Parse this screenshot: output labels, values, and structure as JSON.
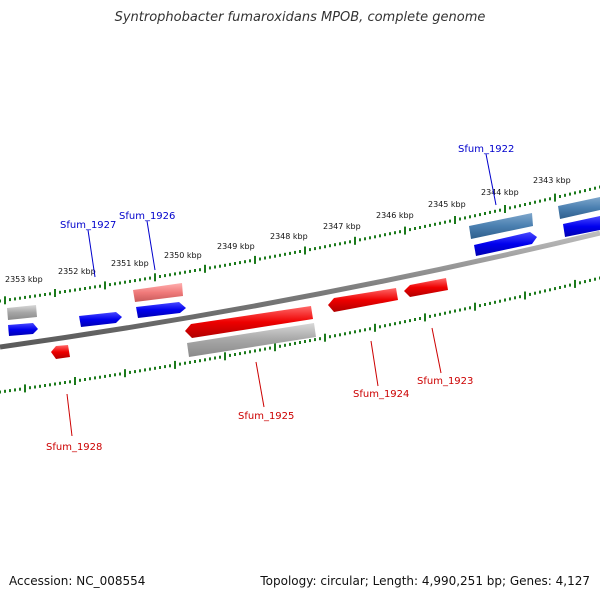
{
  "title": "Syntrophobacter fumaroxidans MPOB, complete genome",
  "footer": {
    "accession": "Accession: NC_008554",
    "topology": "Topology: circular; Length: 4,990,251 bp; Genes: 4,127"
  },
  "ticks": [
    "2353 kbp",
    "2352 kbp",
    "2351 kbp",
    "2350 kbp",
    "2349 kbp",
    "2348 kbp",
    "2347 kbp",
    "2346 kbp",
    "2345 kbp",
    "2344 kbp",
    "2343 kbp"
  ],
  "genes": [
    {
      "name": "Sfum_1927",
      "strand": "forward",
      "color": "#0b0bc8"
    },
    {
      "name": "Sfum_1926",
      "strand": "forward",
      "color": "#0b0bc8"
    },
    {
      "name": "Sfum_1922",
      "strand": "forward",
      "color": "#0b0bc8"
    },
    {
      "name": "Sfum_1925",
      "strand": "reverse",
      "color": "#cc0000"
    },
    {
      "name": "Sfum_1924",
      "strand": "reverse",
      "color": "#cc0000"
    },
    {
      "name": "Sfum_1923",
      "strand": "reverse",
      "color": "#cc0000"
    },
    {
      "name": "Sfum_1928",
      "strand": "reverse",
      "color": "#cc0000"
    }
  ]
}
